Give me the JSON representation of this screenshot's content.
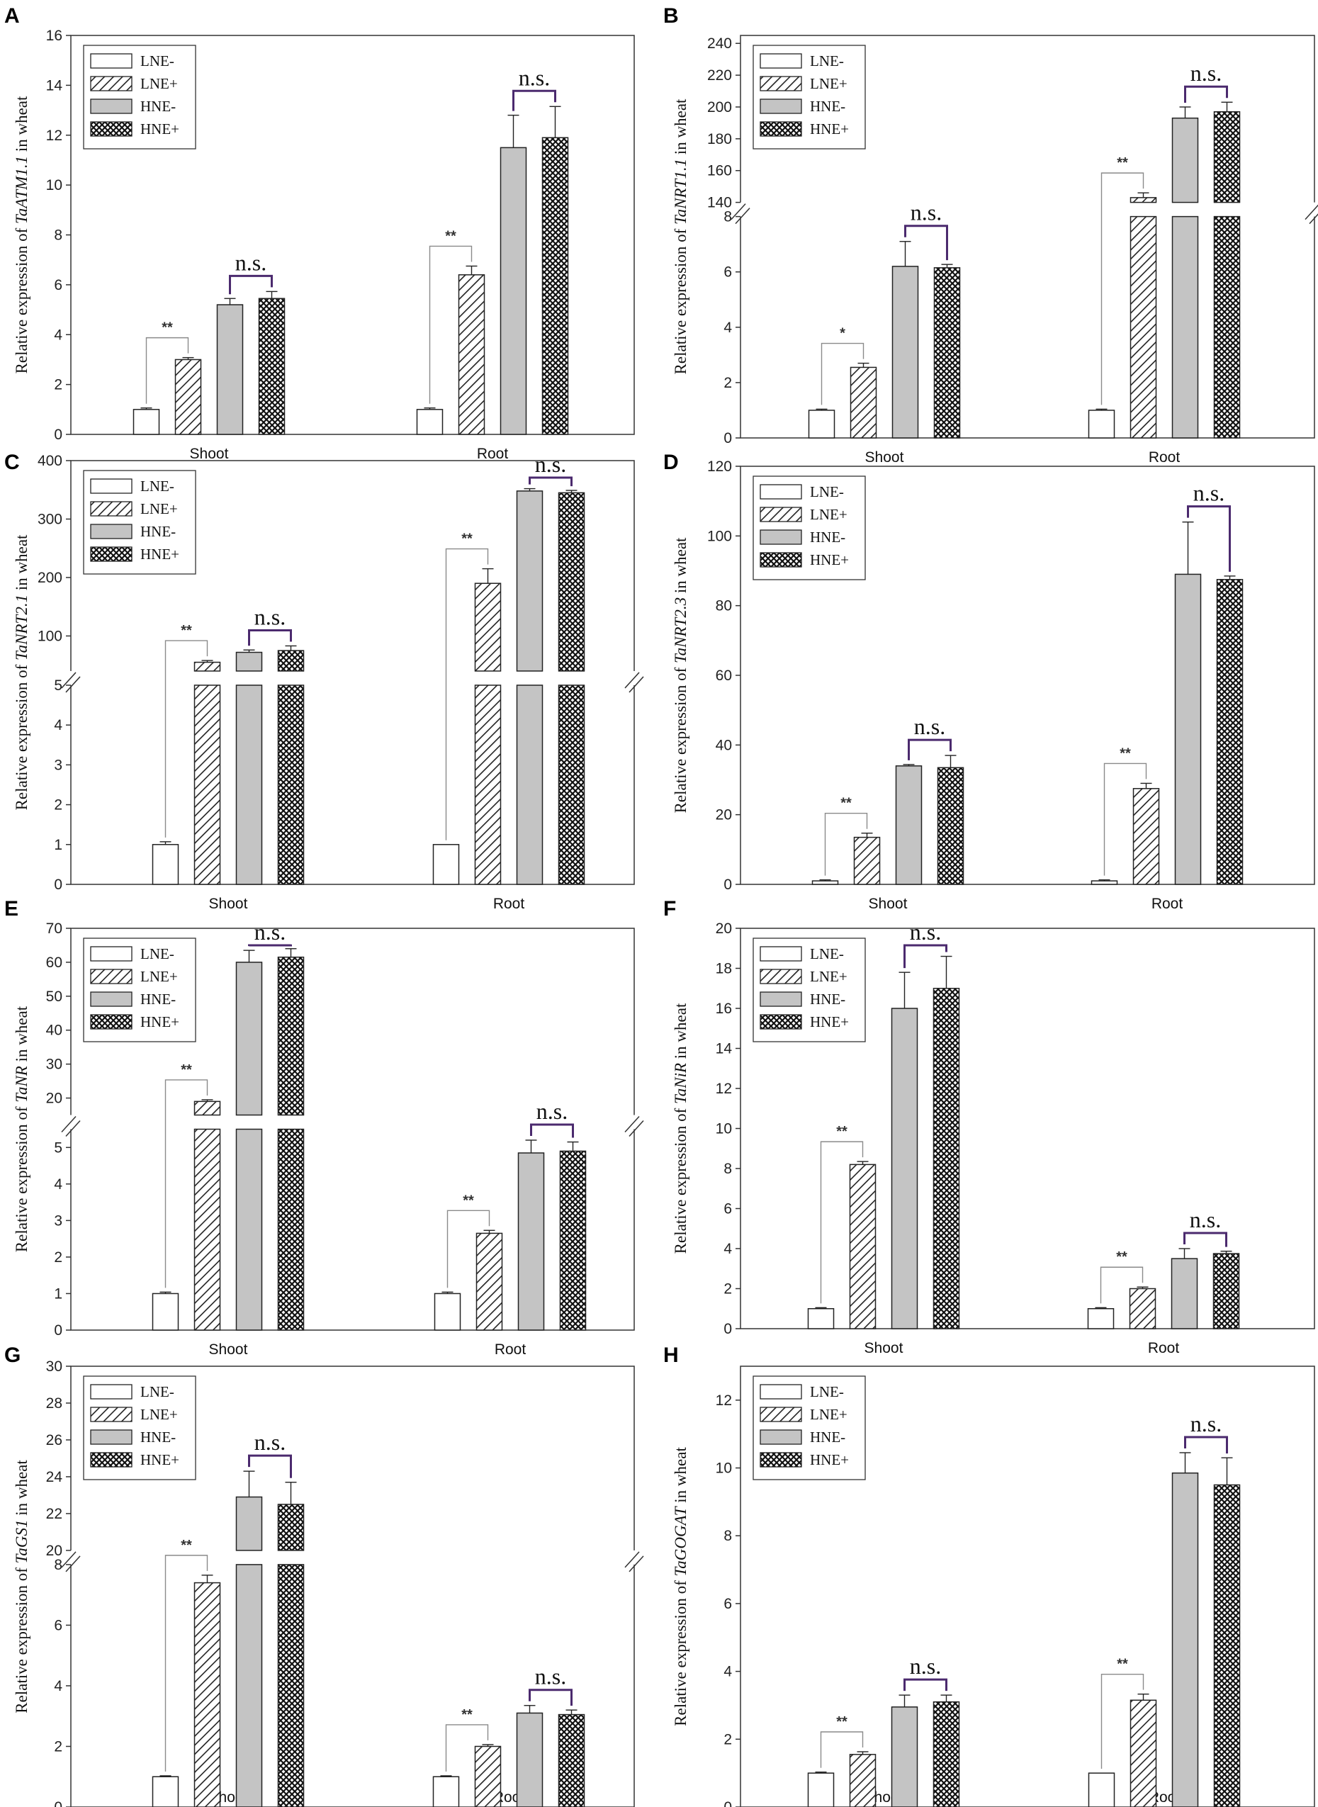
{
  "legend_labels": [
    "LNE-",
    "LNE+",
    "HNE-",
    "HNE+"
  ],
  "colors": {
    "ns_bracket": "#4b2a6e",
    "star_bracket": "#8a8a8a",
    "bar_stroke": "#222222",
    "hne_minus_fill": "#c4c4c4"
  },
  "chart_data": [
    {
      "id": "A",
      "type": "bar",
      "gene": "TaATM1.1",
      "ylabel_prefix": "Relative expression of ",
      "ylabel_suffix": " in wheat",
      "categories": [
        "Shoot",
        "Root"
      ],
      "series": [
        {
          "name": "LNE-",
          "values": [
            1.0,
            1.0
          ],
          "errors": [
            0.06,
            0.06
          ]
        },
        {
          "name": "LNE+",
          "values": [
            3.0,
            6.4
          ],
          "errors": [
            0.08,
            0.35
          ]
        },
        {
          "name": "HNE-",
          "values": [
            5.2,
            11.5
          ],
          "errors": [
            0.25,
            1.3
          ]
        },
        {
          "name": "HNE+",
          "values": [
            5.45,
            11.9
          ],
          "errors": [
            0.28,
            1.25
          ]
        }
      ],
      "ylim": [
        0,
        16
      ],
      "yticks": [
        0,
        2,
        4,
        6,
        8,
        10,
        12,
        14,
        16
      ],
      "significance": [
        {
          "group": 0,
          "pair": [
            0,
            1
          ],
          "label": "**"
        },
        {
          "group": 0,
          "pair": [
            2,
            3
          ],
          "label": "n.s."
        },
        {
          "group": 1,
          "pair": [
            0,
            1
          ],
          "label": "**"
        },
        {
          "group": 1,
          "pair": [
            2,
            3
          ],
          "label": "n.s."
        }
      ]
    },
    {
      "id": "B",
      "type": "bar",
      "gene": "TaNRT1.1",
      "ylabel_prefix": "Relative expression of ",
      "ylabel_suffix": " in wheat",
      "categories": [
        "Shoot",
        "Root"
      ],
      "series": [
        {
          "name": "LNE-",
          "values": [
            1.0,
            1.0
          ],
          "errors": [
            0.04,
            0.04
          ]
        },
        {
          "name": "LNE+",
          "values": [
            2.55,
            143
          ],
          "errors": [
            0.15,
            3
          ]
        },
        {
          "name": "HNE-",
          "values": [
            6.2,
            193
          ],
          "errors": [
            0.9,
            7
          ]
        },
        {
          "name": "HNE+",
          "values": [
            6.15,
            197
          ],
          "errors": [
            0.12,
            6
          ]
        }
      ],
      "axis_break": {
        "low_max": 8,
        "high_min": 140,
        "high_max": 245,
        "low_frac": 0.55
      },
      "yticks_low": [
        0,
        2,
        4,
        6,
        8
      ],
      "yticks_high": [
        140,
        160,
        180,
        200,
        220,
        240
      ],
      "significance": [
        {
          "group": 0,
          "pair": [
            0,
            1
          ],
          "label": "*"
        },
        {
          "group": 0,
          "pair": [
            2,
            3
          ],
          "label": "n.s."
        },
        {
          "group": 1,
          "pair": [
            0,
            1
          ],
          "label": "**"
        },
        {
          "group": 1,
          "pair": [
            2,
            3
          ],
          "label": "n.s."
        }
      ]
    },
    {
      "id": "C",
      "type": "bar",
      "gene": "TaNRT2.1",
      "ylabel_prefix": "Relative expression of ",
      "ylabel_suffix": " in wheat",
      "categories": [
        "Shoot",
        "Root"
      ],
      "series": [
        {
          "name": "LNE-",
          "values": [
            1.0,
            1.0
          ],
          "errors": [
            0.07,
            0.0
          ]
        },
        {
          "name": "LNE+",
          "values": [
            55,
            190
          ],
          "errors": [
            3,
            25
          ]
        },
        {
          "name": "HNE-",
          "values": [
            72,
            348
          ],
          "errors": [
            4,
            4
          ]
        },
        {
          "name": "HNE+",
          "values": [
            75,
            345
          ],
          "errors": [
            8,
            4
          ]
        }
      ],
      "axis_break": {
        "low_max": 5,
        "high_min": 40,
        "high_max": 400,
        "low_frac": 0.47
      },
      "yticks_low": [
        0,
        1,
        2,
        3,
        4,
        5
      ],
      "yticks_high": [
        100,
        200,
        300,
        400
      ],
      "significance": [
        {
          "group": 0,
          "pair": [
            0,
            1
          ],
          "label": "**"
        },
        {
          "group": 0,
          "pair": [
            2,
            3
          ],
          "label": "n.s."
        },
        {
          "group": 1,
          "pair": [
            0,
            1
          ],
          "label": "**"
        },
        {
          "group": 1,
          "pair": [
            2,
            3
          ],
          "label": "n.s."
        }
      ]
    },
    {
      "id": "D",
      "type": "bar",
      "gene": "TaNRT2.3",
      "ylabel_prefix": "Relative expression of ",
      "ylabel_suffix": " in wheat",
      "categories": [
        "Shoot",
        "Root"
      ],
      "series": [
        {
          "name": "LNE-",
          "values": [
            1.0,
            1.0
          ],
          "errors": [
            0.3,
            0.3
          ]
        },
        {
          "name": "LNE+",
          "values": [
            13.5,
            27.5
          ],
          "errors": [
            1.2,
            1.5
          ]
        },
        {
          "name": "HNE-",
          "values": [
            34,
            89
          ],
          "errors": [
            0.4,
            15
          ]
        },
        {
          "name": "HNE+",
          "values": [
            33.5,
            87.5
          ],
          "errors": [
            3.5,
            1.0
          ]
        }
      ],
      "ylim": [
        0,
        120
      ],
      "yticks": [
        0,
        20,
        40,
        60,
        80,
        100,
        120
      ],
      "significance": [
        {
          "group": 0,
          "pair": [
            0,
            1
          ],
          "label": "**"
        },
        {
          "group": 0,
          "pair": [
            2,
            3
          ],
          "label": "n.s."
        },
        {
          "group": 1,
          "pair": [
            0,
            1
          ],
          "label": "**"
        },
        {
          "group": 1,
          "pair": [
            2,
            3
          ],
          "label": "n.s."
        }
      ]
    },
    {
      "id": "E",
      "type": "bar",
      "gene": "TaNR",
      "ylabel_prefix": "Relative expression of ",
      "ylabel_suffix": " in wheat",
      "categories": [
        "Shoot",
        "Root"
      ],
      "series": [
        {
          "name": "LNE-",
          "values": [
            1.0,
            1.0
          ],
          "errors": [
            0.04,
            0.04
          ]
        },
        {
          "name": "LNE+",
          "values": [
            19,
            2.65
          ],
          "errors": [
            0.5,
            0.08
          ]
        },
        {
          "name": "HNE-",
          "values": [
            60,
            4.85
          ],
          "errors": [
            3.5,
            0.35
          ]
        },
        {
          "name": "HNE+",
          "values": [
            61.5,
            4.9
          ],
          "errors": [
            2.5,
            0.25
          ]
        }
      ],
      "axis_break": {
        "low_max": 5.5,
        "high_min": 15,
        "high_max": 70,
        "low_frac": 0.5
      },
      "yticks_low": [
        0,
        1,
        2,
        3,
        4,
        5
      ],
      "yticks_high": [
        20,
        30,
        40,
        50,
        60,
        70
      ],
      "significance": [
        {
          "group": 0,
          "pair": [
            0,
            1
          ],
          "label": "**"
        },
        {
          "group": 0,
          "pair": [
            2,
            3
          ],
          "label": "n.s."
        },
        {
          "group": 1,
          "pair": [
            0,
            1
          ],
          "label": "**"
        },
        {
          "group": 1,
          "pair": [
            2,
            3
          ],
          "label": "n.s."
        }
      ]
    },
    {
      "id": "F",
      "type": "bar",
      "gene": "TaNiR",
      "ylabel_prefix": "Relative expression of ",
      "ylabel_suffix": " in wheat",
      "categories": [
        "Shoot",
        "Root"
      ],
      "series": [
        {
          "name": "LNE-",
          "values": [
            1.0,
            1.0
          ],
          "errors": [
            0.05,
            0.05
          ]
        },
        {
          "name": "LNE+",
          "values": [
            8.2,
            2.0
          ],
          "errors": [
            0.15,
            0.08
          ]
        },
        {
          "name": "HNE-",
          "values": [
            16.0,
            3.5
          ],
          "errors": [
            1.8,
            0.5
          ]
        },
        {
          "name": "HNE+",
          "values": [
            17.0,
            3.75
          ],
          "errors": [
            1.6,
            0.12
          ]
        }
      ],
      "ylim": [
        0,
        20
      ],
      "yticks": [
        0,
        2,
        4,
        6,
        8,
        10,
        12,
        14,
        16,
        18,
        20
      ],
      "significance": [
        {
          "group": 0,
          "pair": [
            0,
            1
          ],
          "label": "**"
        },
        {
          "group": 0,
          "pair": [
            2,
            3
          ],
          "label": "n.s."
        },
        {
          "group": 1,
          "pair": [
            0,
            1
          ],
          "label": "**"
        },
        {
          "group": 1,
          "pair": [
            2,
            3
          ],
          "label": "n.s."
        }
      ]
    },
    {
      "id": "G",
      "type": "bar",
      "gene": "TaGS1",
      "ylabel_prefix": "Relative expression of ",
      "ylabel_suffix": " in wheat",
      "categories": [
        "Shoot",
        "Root"
      ],
      "series": [
        {
          "name": "LNE-",
          "values": [
            1.0,
            1.0
          ],
          "errors": [
            0.03,
            0.03
          ]
        },
        {
          "name": "LNE+",
          "values": [
            7.4,
            2.0
          ],
          "errors": [
            0.25,
            0.06
          ]
        },
        {
          "name": "HNE-",
          "values": [
            22.9,
            3.1
          ],
          "errors": [
            1.4,
            0.25
          ]
        },
        {
          "name": "HNE+",
          "values": [
            22.5,
            3.05
          ],
          "errors": [
            1.2,
            0.15
          ]
        }
      ],
      "axis_break": {
        "low_max": 8,
        "high_min": 20,
        "high_max": 30,
        "low_frac": 0.55
      },
      "yticks_low": [
        0,
        2,
        4,
        6,
        8
      ],
      "yticks_high": [
        20,
        22,
        24,
        26,
        28,
        30
      ],
      "significance": [
        {
          "group": 0,
          "pair": [
            0,
            1
          ],
          "label": "**"
        },
        {
          "group": 0,
          "pair": [
            2,
            3
          ],
          "label": "n.s."
        },
        {
          "group": 1,
          "pair": [
            0,
            1
          ],
          "label": "**"
        },
        {
          "group": 1,
          "pair": [
            2,
            3
          ],
          "label": "n.s."
        }
      ]
    },
    {
      "id": "H",
      "type": "bar",
      "gene": "TaGOGAT",
      "ylabel_prefix": "Relative expression of ",
      "ylabel_suffix": " in wheat",
      "categories": [
        "Shoot",
        "Root"
      ],
      "series": [
        {
          "name": "LNE-",
          "values": [
            1.0,
            1.0
          ],
          "errors": [
            0.03,
            0.0
          ]
        },
        {
          "name": "LNE+",
          "values": [
            1.55,
            3.15
          ],
          "errors": [
            0.08,
            0.18
          ]
        },
        {
          "name": "HNE-",
          "values": [
            2.95,
            9.85
          ],
          "errors": [
            0.35,
            0.6
          ]
        },
        {
          "name": "HNE+",
          "values": [
            3.1,
            9.5
          ],
          "errors": [
            0.2,
            0.8
          ]
        }
      ],
      "ylim": [
        0,
        13
      ],
      "yticks": [
        0,
        2,
        4,
        6,
        8,
        10,
        12
      ],
      "significance": [
        {
          "group": 0,
          "pair": [
            0,
            1
          ],
          "label": "**"
        },
        {
          "group": 0,
          "pair": [
            2,
            3
          ],
          "label": "n.s."
        },
        {
          "group": 1,
          "pair": [
            0,
            1
          ],
          "label": "**"
        },
        {
          "group": 1,
          "pair": [
            2,
            3
          ],
          "label": "n.s."
        }
      ]
    }
  ]
}
